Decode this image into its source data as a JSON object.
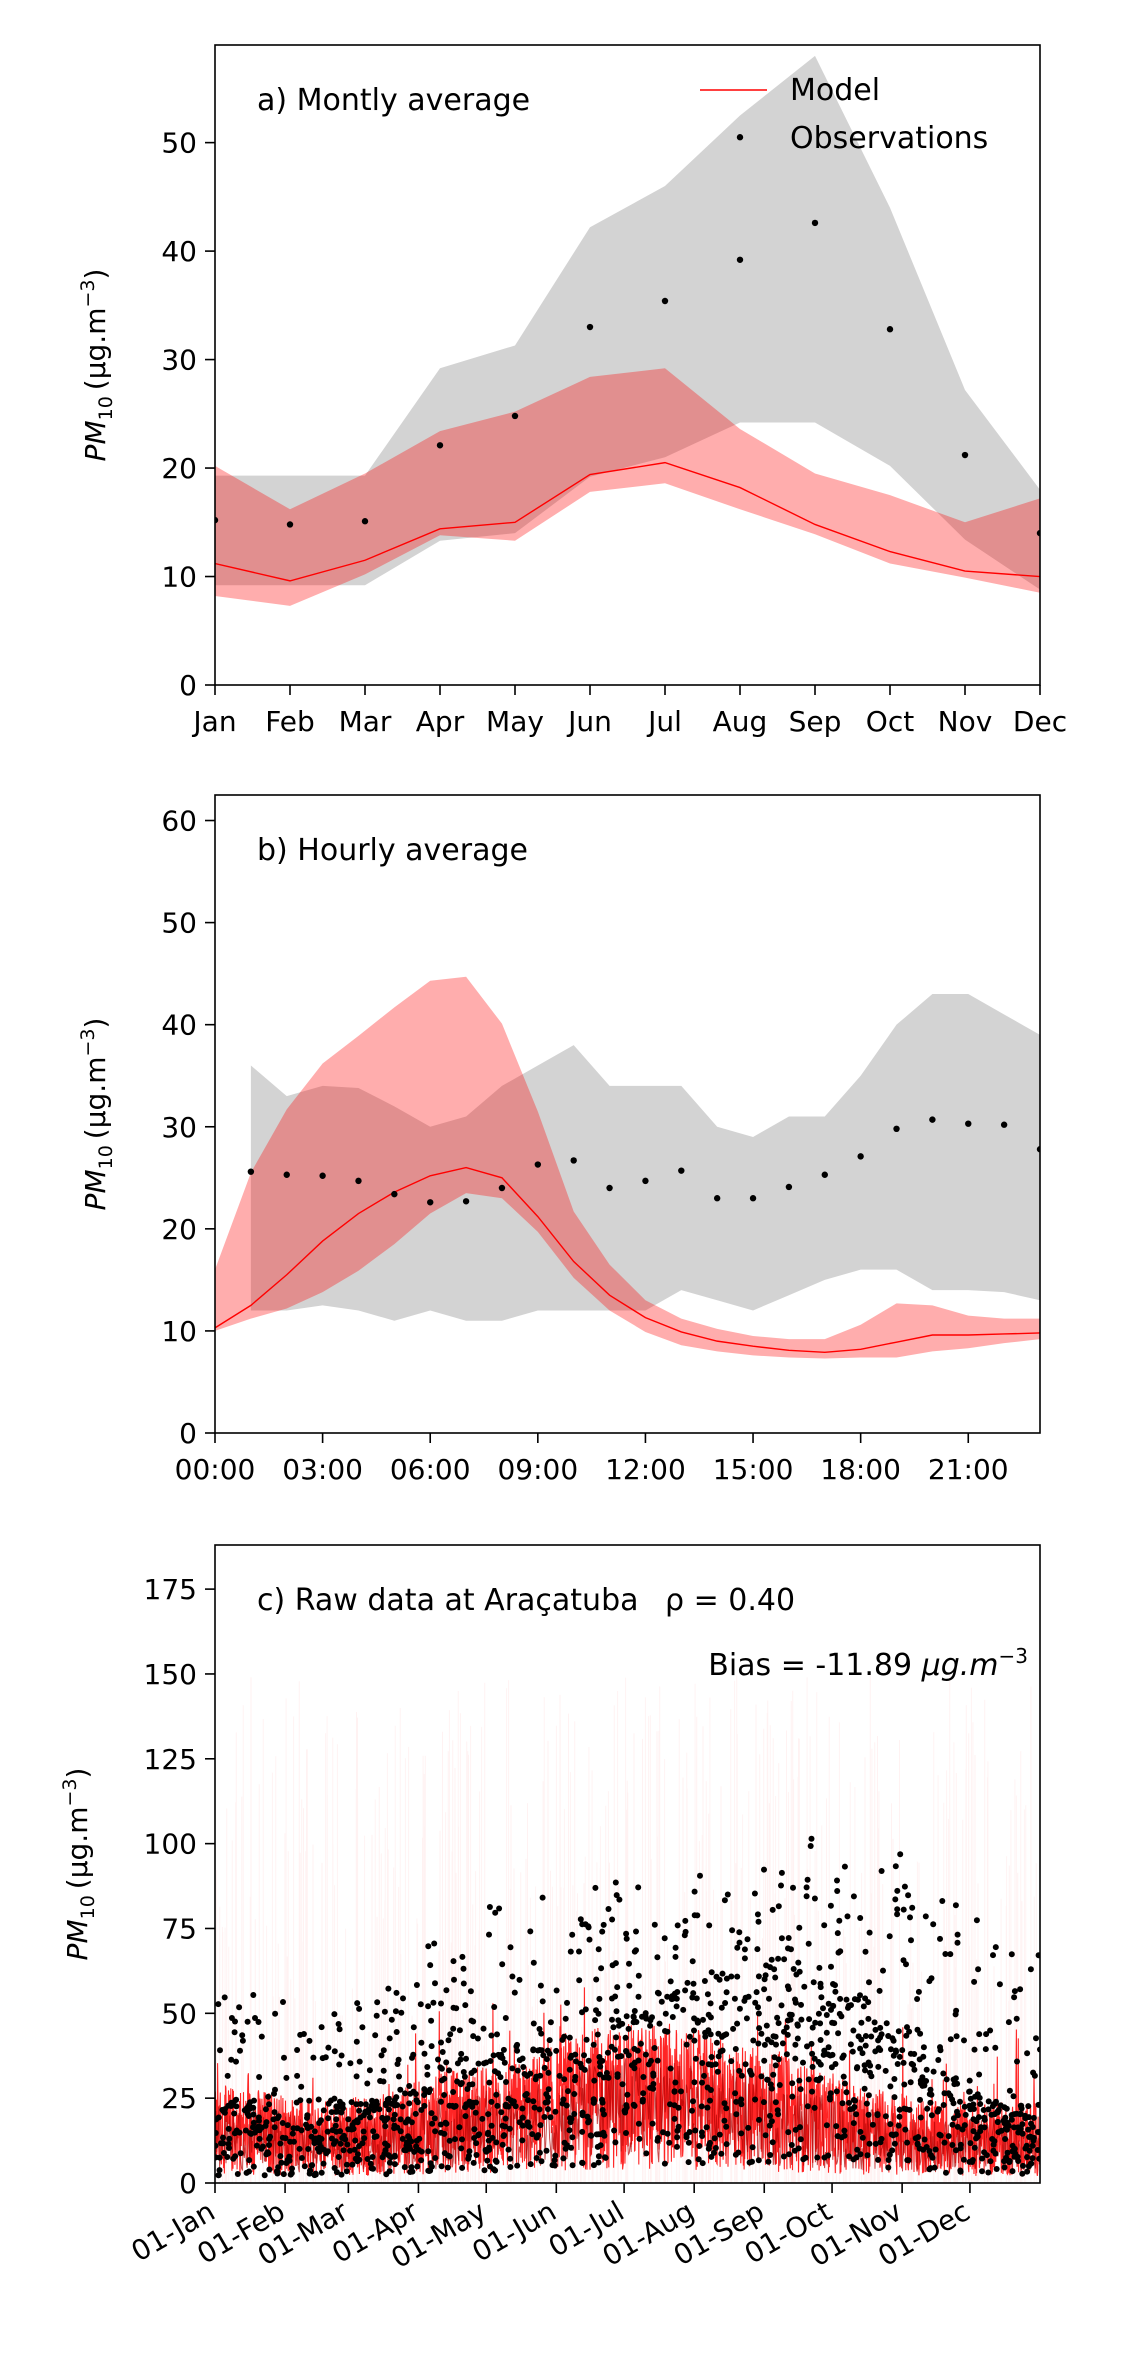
{
  "chart_data": [
    {
      "type": "line",
      "title": "a) Montly average",
      "ylabel": "PM",
      "ylabel_sub": "10",
      "ylabel_units": "(μg.m",
      "ylabel_exp": "−3",
      "xticks": [
        "Jan",
        "Feb",
        "Mar",
        "Apr",
        "May",
        "Jun",
        "Jul",
        "Aug",
        "Sep",
        "Oct",
        "Nov",
        "Dec"
      ],
      "yticks": [
        0,
        10,
        20,
        30,
        40,
        50
      ],
      "ylim": [
        0,
        59
      ],
      "xlim": [
        0,
        11
      ],
      "legend": {
        "position": "top-right",
        "entries": [
          "Model",
          "Observations"
        ]
      },
      "colors": {
        "model": "#ff0000",
        "model_band": "#ffaaaa",
        "obs_band": "#d3d3d3",
        "obs": "#000000"
      },
      "x": [
        0,
        1,
        2,
        3,
        4,
        5,
        6,
        7,
        8,
        9,
        10,
        11
      ],
      "series": [
        {
          "name": "Model",
          "values": [
            11.2,
            9.6,
            11.5,
            14.4,
            15.0,
            19.4,
            20.5,
            18.2,
            14.8,
            12.3,
            10.5,
            10.0
          ]
        },
        {
          "name": "Observations",
          "values": [
            15.2,
            14.8,
            15.1,
            22.1,
            24.8,
            33.0,
            35.4,
            39.2,
            42.6,
            32.8,
            21.2,
            14.0
          ]
        }
      ],
      "model_band": {
        "upper": [
          20.2,
          16.2,
          19.5,
          23.4,
          25.2,
          28.4,
          29.2,
          23.6,
          19.5,
          17.5,
          15.0,
          17.2
        ],
        "lower": [
          8.2,
          7.3,
          10.2,
          13.8,
          13.3,
          17.8,
          18.6,
          16.2,
          13.9,
          11.2,
          9.9,
          8.5
        ]
      },
      "obs_band": {
        "upper": [
          19.3,
          19.3,
          19.3,
          29.2,
          31.3,
          42.2,
          46.0,
          52.5,
          58.0,
          44.0,
          27.2,
          18.0
        ],
        "lower": [
          9.2,
          9.2,
          9.2,
          13.3,
          14.0,
          19.2,
          21.0,
          24.2,
          24.2,
          20.2,
          13.4,
          8.8
        ]
      },
      "extra_obs_points": [
        {
          "x": 7,
          "y": 50.5
        }
      ]
    },
    {
      "type": "line",
      "title": "b) Hourly average",
      "ylabel": "PM",
      "ylabel_sub": "10",
      "ylabel_units": "(μg.m",
      "ylabel_exp": "−3",
      "xticks": [
        "00:00",
        "03:00",
        "06:00",
        "09:00",
        "12:00",
        "15:00",
        "18:00",
        "21:00"
      ],
      "xtick_values": [
        0,
        3,
        6,
        9,
        12,
        15,
        18,
        21
      ],
      "yticks": [
        0,
        10,
        20,
        30,
        40,
        50,
        60
      ],
      "ylim": [
        0,
        62.5
      ],
      "xlim": [
        0,
        23
      ],
      "colors": {
        "model": "#ff0000",
        "model_band": "#ffaaaa",
        "obs_band": "#d3d3d3",
        "obs": "#000000"
      },
      "x": [
        0,
        1,
        2,
        3,
        4,
        5,
        6,
        7,
        8,
        9,
        10,
        11,
        12,
        13,
        14,
        15,
        16,
        17,
        18,
        19,
        20,
        21,
        22,
        23
      ],
      "series": [
        {
          "name": "Model",
          "values": [
            10.3,
            12.5,
            15.5,
            18.8,
            21.5,
            23.6,
            25.2,
            26.0,
            25.0,
            21.2,
            16.8,
            13.5,
            11.3,
            9.9,
            9.0,
            8.5,
            8.1,
            7.9,
            8.2,
            8.9,
            9.6,
            9.6,
            9.7,
            9.8
          ]
        },
        {
          "name": "Observations",
          "values": [
            null,
            25.6,
            25.3,
            25.2,
            24.7,
            23.4,
            22.6,
            22.7,
            24.0,
            26.3,
            26.7,
            24.0,
            24.7,
            25.7,
            23.0,
            23.0,
            24.1,
            25.3,
            27.1,
            29.8,
            30.7,
            30.3,
            30.2,
            27.8
          ]
        }
      ],
      "model_band": {
        "upper": [
          16.0,
          25.5,
          31.7,
          36.2,
          38.9,
          41.7,
          44.3,
          44.7,
          40.1,
          31.5,
          21.7,
          16.5,
          13.0,
          11.2,
          10.2,
          9.5,
          9.2,
          9.2,
          10.6,
          12.7,
          12.5,
          11.5,
          11.2,
          11.2
        ],
        "lower": [
          10.0,
          11.2,
          12.2,
          13.8,
          15.9,
          18.5,
          21.5,
          23.5,
          23.0,
          19.7,
          15.2,
          12.0,
          9.9,
          8.6,
          8.0,
          7.6,
          7.4,
          7.3,
          7.4,
          7.4,
          8.0,
          8.3,
          8.8,
          9.2
        ]
      },
      "obs_band": {
        "upper": [
          null,
          36.0,
          33.0,
          34.0,
          33.8,
          32.0,
          30.0,
          31.0,
          34.0,
          36.0,
          38.0,
          34.0,
          34.0,
          34.0,
          30.0,
          29.0,
          31.0,
          31.0,
          35.0,
          40.0,
          43.0,
          43.0,
          41.0,
          39.0
        ],
        "lower": [
          null,
          12.0,
          12.0,
          12.5,
          12.0,
          11.0,
          12.0,
          11.0,
          11.0,
          12.0,
          12.0,
          12.0,
          12.0,
          14.0,
          13.0,
          12.0,
          13.5,
          15.0,
          16.0,
          16.0,
          14.0,
          14.0,
          13.8,
          13.0
        ]
      }
    },
    {
      "type": "scatter",
      "title": "c) Raw data at Araçatuba",
      "rho_text": "ρ = 0.40",
      "bias_text": "Bias = -11.89 ",
      "bias_units": "μg.m",
      "bias_exp": "−3",
      "ylabel": "PM",
      "ylabel_sub": "10",
      "ylabel_units": "(μg.m",
      "ylabel_exp": "−3",
      "xticks": [
        "01-Jan",
        "01-Feb",
        "01-Mar",
        "01-Apr",
        "01-May",
        "01-Jun",
        "01-Jul",
        "01-Aug",
        "01-Sep",
        "01-Oct",
        "01-Nov",
        "01-Dec"
      ],
      "xtick_values": [
        0,
        31,
        59,
        90,
        120,
        151,
        181,
        212,
        243,
        273,
        304,
        334
      ],
      "yticks": [
        0,
        25,
        50,
        75,
        100,
        125,
        150,
        175
      ],
      "ylim": [
        0,
        188
      ],
      "xlim": [
        0,
        365
      ],
      "colors": {
        "model": "#ff0000",
        "model_faint": "#ff0000",
        "obs": "#000000"
      },
      "monthly_profile": {
        "day": [
          15,
          45,
          74,
          105,
          135,
          166,
          196,
          227,
          258,
          288,
          319,
          349
        ],
        "model_mean": [
          12,
          10,
          11,
          14,
          15,
          19,
          20,
          18,
          15,
          12,
          10,
          10
        ],
        "obs_mean": [
          15,
          15,
          15,
          22,
          25,
          33,
          35,
          39,
          43,
          33,
          21,
          14
        ],
        "obs_max": [
          58,
          50,
          60,
          78,
          85,
          90,
          92,
          96,
          102,
          101,
          93,
          68
        ]
      }
    }
  ]
}
